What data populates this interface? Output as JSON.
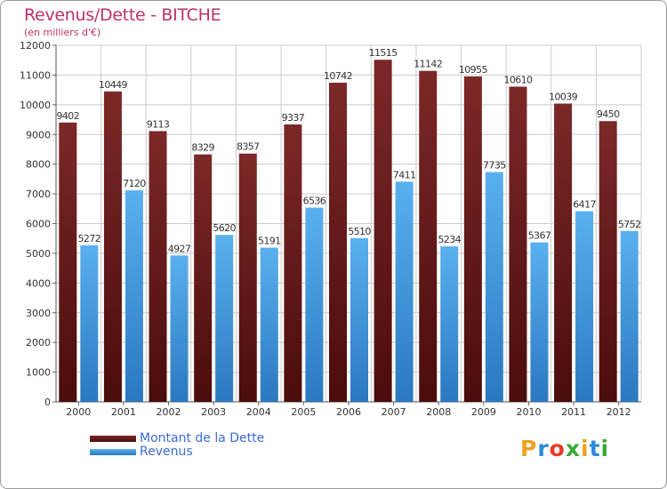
{
  "title": "Revenus/Dette - BITCHE",
  "subtitle": "(en milliers d'€)",
  "colors": {
    "dette_top": "#7c2828",
    "dette_bottom": "#4a0c0c",
    "revenus_top": "#5ab0ef",
    "revenus_bottom": "#2a78c0",
    "title": "#c0306a",
    "legend_text": "#3c6bd8",
    "grid": "#cccccc"
  },
  "legend": {
    "dette_label": "Montant de la Dette",
    "revenus_label": "Revenus"
  },
  "logo": {
    "letters": [
      "P",
      "r",
      "o",
      "x",
      "i",
      "t",
      "i"
    ],
    "colors": [
      "#f0a020",
      "#2b8ad8",
      "#e83a28",
      "#3ca838",
      "#f0a020",
      "#2b8ad8",
      "#3ca838"
    ]
  },
  "chart_data": {
    "type": "bar",
    "title": "Revenus/Dette - BITCHE",
    "subtitle": "(en milliers d'€)",
    "categories": [
      "2000",
      "2001",
      "2002",
      "2003",
      "2004",
      "2005",
      "2006",
      "2007",
      "2008",
      "2009",
      "2010",
      "2011",
      "2012"
    ],
    "series": [
      {
        "name": "Montant de la Dette",
        "values": [
          9402,
          10449,
          9113,
          8329,
          8357,
          9337,
          10742,
          11515,
          11142,
          10955,
          10610,
          10039,
          9450
        ]
      },
      {
        "name": "Revenus",
        "values": [
          5272,
          7120,
          4927,
          5620,
          5191,
          6536,
          5510,
          7411,
          5234,
          7735,
          5367,
          6417,
          5752
        ]
      }
    ],
    "ylim": [
      0,
      12000
    ],
    "yticks": [
      0,
      1000,
      2000,
      3000,
      4000,
      5000,
      6000,
      7000,
      8000,
      9000,
      10000,
      11000,
      12000
    ],
    "grid": true,
    "legend_position": "bottom-left"
  }
}
